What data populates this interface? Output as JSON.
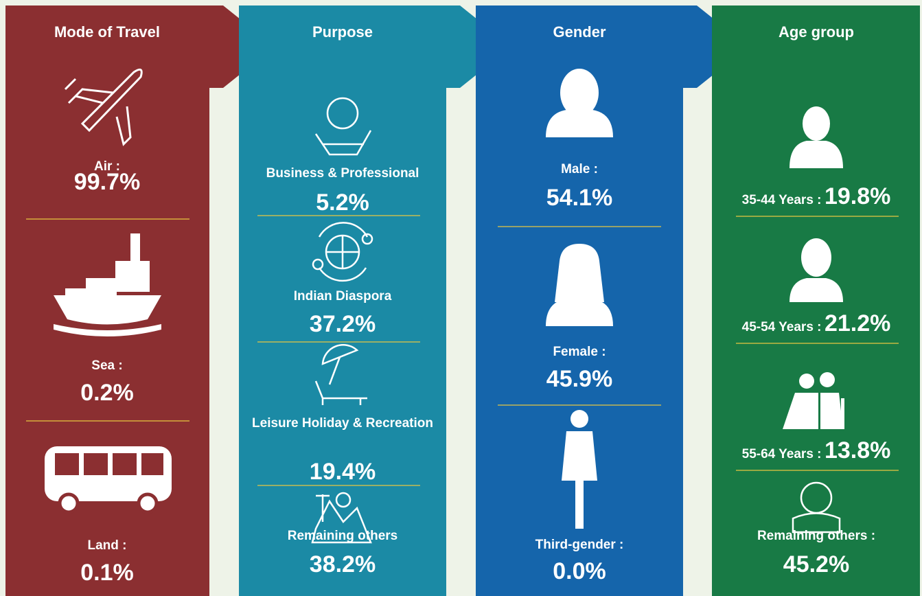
{
  "columns": [
    {
      "title": "Mode of Travel",
      "items": [
        {
          "label": "Air :",
          "value": "99.7%"
        },
        {
          "label": "Sea :",
          "value": "0.2%"
        },
        {
          "label": "Land :",
          "value": "0.1%"
        }
      ]
    },
    {
      "title": "Purpose",
      "items": [
        {
          "label": "Business & Professional",
          "value": "5.2%"
        },
        {
          "label": "Indian Diaspora",
          "value": "37.2%"
        },
        {
          "label": "Leisure Holiday & Recreation",
          "value": "19.4%"
        },
        {
          "label": "Remaining others",
          "value": "38.2%"
        }
      ]
    },
    {
      "title": "Gender",
      "items": [
        {
          "label": "Male :",
          "value": "54.1%"
        },
        {
          "label": "Female :",
          "value": "45.9%"
        },
        {
          "label": "Third-gender :",
          "value": "0.0%"
        }
      ]
    },
    {
      "title": "Age group",
      "items": [
        {
          "label": "35-44 Years :",
          "value": "19.8%"
        },
        {
          "label": "45-54 Years :",
          "value": "21.2%"
        },
        {
          "label": "55-64 Years :",
          "value": "13.8%"
        },
        {
          "label": "Remaining others :",
          "value": "45.2%"
        }
      ]
    }
  ]
}
